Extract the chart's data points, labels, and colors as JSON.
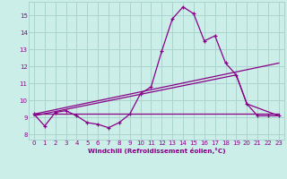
{
  "background_color": "#cceee8",
  "grid_color": "#aad4ce",
  "line_color": "#880088",
  "x_label": "Windchill (Refroidissement éolien,°C)",
  "x_ticks": [
    0,
    1,
    2,
    3,
    4,
    5,
    6,
    7,
    8,
    9,
    10,
    11,
    12,
    13,
    14,
    15,
    16,
    17,
    18,
    19,
    20,
    21,
    22,
    23
  ],
  "y_ticks": [
    8,
    9,
    10,
    11,
    12,
    13,
    14,
    15
  ],
  "xlim": [
    -0.5,
    23.5
  ],
  "ylim": [
    7.7,
    15.8
  ],
  "line1_x": [
    0,
    1,
    2,
    3,
    4,
    5,
    6,
    7,
    8,
    9,
    10,
    11,
    12,
    13,
    14,
    15,
    16,
    17,
    18,
    19,
    20,
    21,
    22,
    23
  ],
  "line1_y": [
    9.2,
    8.5,
    9.3,
    9.4,
    9.1,
    8.7,
    8.6,
    8.4,
    8.7,
    9.2,
    10.4,
    10.8,
    12.9,
    14.8,
    15.5,
    15.1,
    13.5,
    13.8,
    12.2,
    11.5,
    9.8,
    9.1,
    9.1,
    9.1
  ],
  "line2_x": [
    0,
    14,
    23
  ],
  "line2_y": [
    9.2,
    9.2,
    9.2
  ],
  "line3_x": [
    0,
    23
  ],
  "line3_y": [
    9.2,
    12.2
  ],
  "line4_x": [
    0,
    19,
    20,
    23
  ],
  "line4_y": [
    9.1,
    11.5,
    9.8,
    9.1
  ]
}
